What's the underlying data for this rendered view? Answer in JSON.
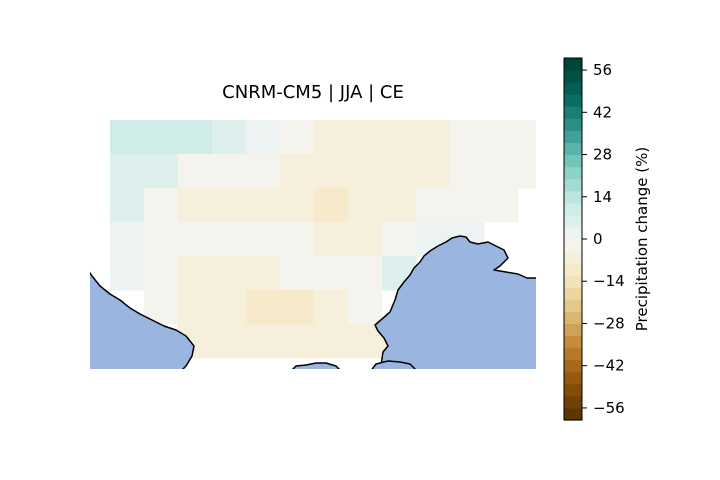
{
  "title": "CNRM-CM5 | JJA | CE",
  "colorbar": {
    "label": "Precipitation change (%)",
    "min": -60,
    "max": 60,
    "ticks": [
      56,
      42,
      28,
      14,
      0,
      -14,
      -28,
      -42,
      -56
    ],
    "tick_labels": [
      "56",
      "42",
      "28",
      "14",
      "0",
      "−14",
      "−28",
      "−42",
      "−56"
    ],
    "colormap": "BrBG",
    "levels": 30
  },
  "colors": {
    "water": "#99b5e0",
    "coastline": "#000000"
  },
  "grid_values": [
    [
      10,
      10,
      8,
      4,
      1,
      -2,
      -6,
      -6,
      -6,
      -6,
      -3,
      -3,
      -4
    ],
    [
      7,
      4,
      -1,
      -4,
      -4,
      -6,
      -8,
      -8,
      -7,
      -5,
      -4,
      -4,
      -4
    ],
    [
      5,
      -2,
      -6,
      -6,
      -6,
      -7,
      -9,
      -8,
      -7,
      -3,
      -2,
      -2,
      null
    ],
    [
      3,
      -2,
      -4,
      -4,
      -3,
      -3,
      -5,
      -5,
      -3,
      1,
      0,
      null,
      null
    ],
    [
      2,
      -3,
      -5,
      -6,
      -6,
      -4,
      -3,
      -2,
      4,
      null,
      null,
      null,
      null
    ],
    [
      null,
      -4,
      -6,
      -6,
      -9,
      -9,
      -7,
      -3,
      null,
      null,
      null,
      null,
      null
    ],
    [
      null,
      null,
      -6,
      -6,
      -7,
      -8,
      -7,
      -6,
      -7,
      -6,
      -6,
      -6,
      null
    ]
  ]
}
